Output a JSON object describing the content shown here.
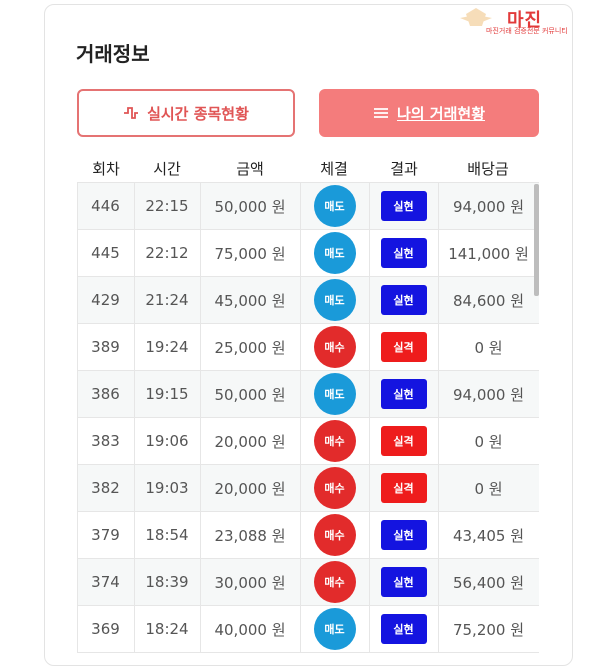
{
  "header": {
    "title": "거래정보"
  },
  "watermark": {
    "brand": "마진",
    "tagline": "마진거래 검증전문 커뮤니티"
  },
  "buttons": {
    "live_label": "실시간 종목현황",
    "mine_label": "나의 거래현황"
  },
  "table": {
    "columns": [
      "회차",
      "시간",
      "금액",
      "체결",
      "결과",
      "배당금"
    ],
    "rows": [
      {
        "round": "446",
        "time": "22:15",
        "amount": "50,000 원",
        "trade": "매도",
        "result": "실현",
        "payout": "94,000 원"
      },
      {
        "round": "445",
        "time": "22:12",
        "amount": "75,000 원",
        "trade": "매도",
        "result": "실현",
        "payout": "141,000 원"
      },
      {
        "round": "429",
        "time": "21:24",
        "amount": "45,000 원",
        "trade": "매도",
        "result": "실현",
        "payout": "84,600 원"
      },
      {
        "round": "389",
        "time": "19:24",
        "amount": "25,000 원",
        "trade": "매수",
        "result": "실격",
        "payout": "0 원"
      },
      {
        "round": "386",
        "time": "19:15",
        "amount": "50,000 원",
        "trade": "매도",
        "result": "실현",
        "payout": "94,000 원"
      },
      {
        "round": "383",
        "time": "19:06",
        "amount": "20,000 원",
        "trade": "매수",
        "result": "실격",
        "payout": "0 원"
      },
      {
        "round": "382",
        "time": "19:03",
        "amount": "20,000 원",
        "trade": "매수",
        "result": "실격",
        "payout": "0 원"
      },
      {
        "round": "379",
        "time": "18:54",
        "amount": "23,088 원",
        "trade": "매수",
        "result": "실현",
        "payout": "43,405 원"
      },
      {
        "round": "374",
        "time": "18:39",
        "amount": "30,000 원",
        "trade": "매수",
        "result": "실현",
        "payout": "56,400 원"
      },
      {
        "round": "369",
        "time": "18:24",
        "amount": "40,000 원",
        "trade": "매도",
        "result": "실현",
        "payout": "75,200 원"
      }
    ]
  },
  "colors": {
    "sell": "#1a9ad9",
    "buy": "#e22b2b",
    "win": "#1414e0",
    "lose": "#ee1c1c",
    "accent": "#f47c7c"
  }
}
